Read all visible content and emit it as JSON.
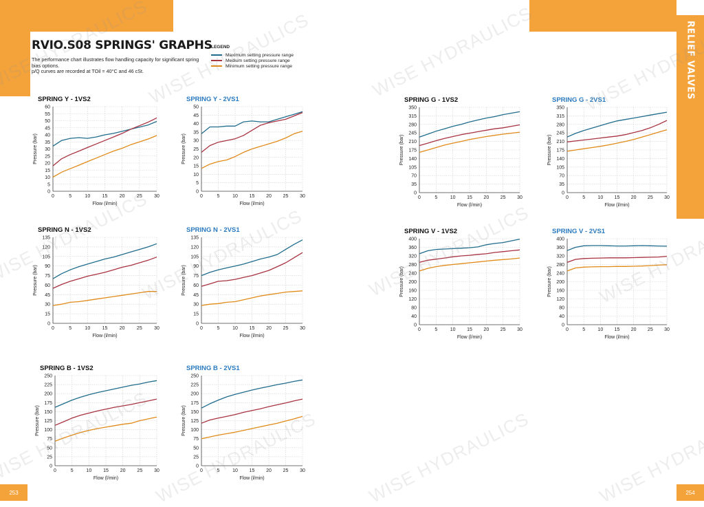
{
  "page": {
    "title": "RVIO.S08 SPRINGS' GRAPHS",
    "description": "The performance chart illustrates flow handling capacity for significant spring bias options.\np/Q curves are recorded at TOil = 40°C and 46 cSt.",
    "section_title": "RELIEF VALVES",
    "page_left": "253",
    "page_right": "254",
    "watermark": "WISE HYDRAULICS"
  },
  "legend": {
    "title": "LEGEND",
    "items": [
      {
        "label": "Maximum setting pressure range",
        "color": "#1f6c8c"
      },
      {
        "label": "Medium setting pressure range",
        "color": "#a83240"
      },
      {
        "label": "Minimum setting pressure range",
        "color": "#e08a18"
      }
    ]
  },
  "colors": {
    "accent": "#f4a23a",
    "blue_title": "#2a7abf",
    "max": "#1f6c8c",
    "med": "#a83240",
    "min": "#e08a18"
  },
  "chart_data": [
    {
      "type": "line",
      "title": "SPRING Y - 1VS2",
      "xlabel": "Flow (l/min)",
      "ylabel": "Pressure (bar)",
      "xlim": [
        0,
        30
      ],
      "ylim": [
        0,
        60
      ],
      "yticks": [
        0,
        5,
        10,
        15,
        20,
        25,
        30,
        35,
        40,
        45,
        50,
        55,
        60
      ],
      "xticks": [
        0,
        5,
        10,
        15,
        20,
        25,
        30
      ],
      "grid": true,
      "x": [
        0,
        2.5,
        5,
        7.5,
        10,
        12.5,
        15,
        17.5,
        20,
        22.5,
        25,
        27.5,
        30
      ],
      "series": [
        {
          "values": [
            32,
            36,
            37.5,
            38,
            37.5,
            38.5,
            40,
            41,
            42.5,
            44,
            45.5,
            47,
            49.5
          ]
        },
        {
          "values": [
            18,
            23,
            26,
            28.5,
            31,
            33.5,
            36,
            38.5,
            41,
            44,
            46.5,
            49,
            52
          ]
        },
        {
          "values": [
            10,
            13.5,
            16,
            18.5,
            21,
            23.5,
            26,
            28.5,
            30.5,
            33,
            35,
            37,
            39.5
          ]
        }
      ]
    },
    {
      "type": "line",
      "title": "SPRING Y - 2VS1",
      "xlabel": "Flow (l/min)",
      "ylabel": "Pressure (bar)",
      "xlim": [
        0,
        30
      ],
      "ylim": [
        0,
        50
      ],
      "yticks": [
        0,
        5,
        10,
        15,
        20,
        25,
        30,
        35,
        40,
        45,
        50
      ],
      "xticks": [
        0,
        5,
        10,
        15,
        20,
        25,
        30
      ],
      "grid": true,
      "x": [
        0,
        2.5,
        5,
        7.5,
        10,
        12.5,
        15,
        17.5,
        20,
        22.5,
        25,
        27.5,
        30
      ],
      "series": [
        {
          "values": [
            34,
            38,
            38,
            38.5,
            38.5,
            41,
            41.5,
            41,
            41,
            42.5,
            44,
            45.5,
            47
          ]
        },
        {
          "values": [
            23,
            27,
            29,
            30,
            31,
            33,
            36,
            39,
            40.5,
            41.5,
            42.5,
            44.5,
            46.5
          ]
        },
        {
          "values": [
            13.5,
            16,
            17.5,
            18.5,
            20.5,
            23,
            25,
            26.5,
            28,
            29.5,
            31.5,
            34,
            35.5
          ]
        }
      ]
    },
    {
      "type": "line",
      "title": "SPRING G - 1VS2",
      "xlabel": "Flow (l/min)",
      "ylabel": "Pressure (bar)",
      "xlim": [
        0,
        30
      ],
      "ylim": [
        0,
        350
      ],
      "yticks": [
        0,
        35,
        70,
        105,
        140,
        175,
        210,
        245,
        280,
        315,
        350
      ],
      "xticks": [
        0,
        5,
        10,
        15,
        20,
        25,
        30
      ],
      "grid": true,
      "x": [
        0,
        2.5,
        5,
        7.5,
        10,
        12.5,
        15,
        17.5,
        20,
        22.5,
        25,
        27.5,
        30
      ],
      "series": [
        {
          "values": [
            228,
            240,
            252,
            262,
            272,
            280,
            290,
            298,
            306,
            312,
            320,
            326,
            332
          ]
        },
        {
          "values": [
            193,
            203,
            213,
            222,
            230,
            238,
            244,
            250,
            256,
            262,
            266,
            272,
            278
          ]
        },
        {
          "values": [
            165,
            175,
            185,
            195,
            203,
            210,
            218,
            224,
            230,
            235,
            240,
            244,
            248
          ]
        }
      ]
    },
    {
      "type": "line",
      "title": "SPRING G - 2VS1",
      "xlabel": "Flow (l/min)",
      "ylabel": "Pressure (bar)",
      "xlim": [
        0,
        30
      ],
      "ylim": [
        0,
        350
      ],
      "yticks": [
        0,
        35,
        70,
        105,
        140,
        175,
        210,
        245,
        280,
        315,
        350
      ],
      "xticks": [
        0,
        5,
        10,
        15,
        20,
        25,
        30
      ],
      "grid": true,
      "x": [
        0,
        2.5,
        5,
        7.5,
        10,
        12.5,
        15,
        17.5,
        20,
        22.5,
        25,
        27.5,
        30
      ],
      "series": [
        {
          "values": [
            228,
            243,
            255,
            265,
            275,
            285,
            294,
            300,
            306,
            312,
            318,
            324,
            330
          ]
        },
        {
          "values": [
            208,
            212,
            216,
            220,
            224,
            228,
            232,
            238,
            246,
            255,
            266,
            280,
            296
          ]
        },
        {
          "values": [
            170,
            175,
            180,
            185,
            190,
            196,
            203,
            210,
            218,
            228,
            238,
            248,
            258
          ]
        }
      ]
    },
    {
      "type": "line",
      "title": "SPRING N - 1VS2",
      "xlabel": "Flow (l/min)",
      "ylabel": "Pressure (bar)",
      "xlim": [
        0,
        30
      ],
      "ylim": [
        0,
        135
      ],
      "yticks": [
        0,
        15,
        30,
        45,
        60,
        75,
        90,
        105,
        120,
        135
      ],
      "xticks": [
        0,
        5,
        10,
        15,
        20,
        25,
        30
      ],
      "grid": true,
      "x": [
        0,
        2.5,
        5,
        7.5,
        10,
        12.5,
        15,
        17.5,
        20,
        22.5,
        25,
        27.5,
        30
      ],
      "series": [
        {
          "values": [
            70,
            78,
            84,
            89,
            93,
            97,
            101,
            104,
            108,
            112,
            116,
            120,
            125
          ]
        },
        {
          "values": [
            55,
            61,
            66,
            70,
            74,
            77,
            80,
            84,
            88,
            91,
            95,
            99,
            104
          ]
        },
        {
          "values": [
            28,
            30,
            33,
            34,
            36,
            38,
            40,
            42,
            44,
            46,
            48,
            50,
            50
          ]
        }
      ]
    },
    {
      "type": "line",
      "title": "SPRING N - 2VS1",
      "xlabel": "Flow (l/min)",
      "ylabel": "Pressure (bar)",
      "xlim": [
        0,
        30
      ],
      "ylim": [
        0,
        135
      ],
      "yticks": [
        0,
        15,
        30,
        45,
        60,
        75,
        90,
        105,
        120,
        135
      ],
      "xticks": [
        0,
        5,
        10,
        15,
        20,
        25,
        30
      ],
      "grid": true,
      "x": [
        0,
        2.5,
        5,
        7.5,
        10,
        12.5,
        15,
        17.5,
        20,
        22.5,
        25,
        27.5,
        30
      ],
      "series": [
        {
          "values": [
            75,
            80,
            84,
            87,
            90,
            93,
            97,
            101,
            104,
            108,
            116,
            124,
            131
          ]
        },
        {
          "values": [
            58,
            62,
            66,
            67,
            69,
            72,
            75,
            79,
            83,
            89,
            95,
            103,
            111
          ]
        },
        {
          "values": [
            28,
            30,
            31,
            33,
            34,
            37,
            40,
            43,
            45,
            47,
            49,
            50,
            51
          ]
        }
      ]
    },
    {
      "type": "line",
      "title": "SPRING V - 1VS2",
      "xlabel": "Flow (l/min)",
      "ylabel": "Pressure (bar)",
      "xlim": [
        0,
        30
      ],
      "ylim": [
        0,
        400
      ],
      "yticks": [
        0,
        40,
        80,
        120,
        160,
        200,
        240,
        280,
        320,
        360,
        400
      ],
      "xticks": [
        0,
        5,
        10,
        15,
        20,
        25,
        30
      ],
      "grid": true,
      "x": [
        0,
        2.5,
        5,
        7.5,
        10,
        12.5,
        15,
        17.5,
        20,
        22.5,
        25,
        27.5,
        30
      ],
      "series": [
        {
          "values": [
            330,
            344,
            350,
            352,
            354,
            356,
            358,
            362,
            372,
            378,
            382,
            390,
            398
          ]
        },
        {
          "values": [
            290,
            300,
            305,
            310,
            316,
            320,
            323,
            327,
            330,
            336,
            340,
            344,
            348
          ]
        },
        {
          "values": [
            250,
            262,
            270,
            276,
            280,
            284,
            288,
            292,
            296,
            300,
            303,
            306,
            310
          ]
        }
      ]
    },
    {
      "type": "line",
      "title": "SPRING V - 2VS1",
      "xlabel": "Flow (l/min)",
      "ylabel": "Pressure (bar)",
      "xlim": [
        0,
        30
      ],
      "ylim": [
        0,
        400
      ],
      "yticks": [
        0,
        40,
        80,
        120,
        160,
        200,
        240,
        280,
        320,
        360,
        400
      ],
      "xticks": [
        0,
        5,
        10,
        15,
        20,
        25,
        30
      ],
      "grid": true,
      "x": [
        0,
        2.5,
        5,
        7.5,
        10,
        12.5,
        15,
        17.5,
        20,
        22.5,
        25,
        27.5,
        30
      ],
      "series": [
        {
          "values": [
            345,
            360,
            367,
            368,
            368,
            367,
            366,
            366,
            367,
            368,
            367,
            366,
            365
          ]
        },
        {
          "values": [
            290,
            304,
            308,
            309,
            310,
            311,
            311,
            311,
            312,
            313,
            314,
            315,
            318
          ]
        },
        {
          "values": [
            250,
            264,
            268,
            269,
            270,
            270,
            271,
            271,
            272,
            273,
            275,
            277,
            279
          ]
        }
      ]
    },
    {
      "type": "line",
      "title": "SPRING B - 1VS2",
      "xlabel": "Flow (l/min)",
      "ylabel": "Pressure (bar)",
      "xlim": [
        0,
        30
      ],
      "ylim": [
        0,
        250
      ],
      "yticks": [
        0,
        25,
        50,
        75,
        100,
        125,
        150,
        175,
        200,
        225,
        250
      ],
      "xticks": [
        0,
        5,
        10,
        15,
        20,
        25,
        30
      ],
      "grid": true,
      "x": [
        0,
        2.5,
        5,
        7.5,
        10,
        12.5,
        15,
        17.5,
        20,
        22.5,
        25,
        27.5,
        30
      ],
      "series": [
        {
          "values": [
            162,
            172,
            182,
            190,
            197,
            203,
            208,
            213,
            218,
            223,
            227,
            232,
            236
          ]
        },
        {
          "values": [
            112,
            122,
            132,
            140,
            146,
            152,
            157,
            162,
            166,
            170,
            175,
            180,
            185
          ]
        },
        {
          "values": [
            68,
            77,
            85,
            92,
            98,
            103,
            107,
            111,
            115,
            118,
            125,
            130,
            135
          ]
        }
      ]
    },
    {
      "type": "line",
      "title": "SPRING B - 2VS1",
      "xlabel": "Flow (l/min)",
      "ylabel": "Pressure (bar)",
      "xlim": [
        0,
        30
      ],
      "ylim": [
        0,
        250
      ],
      "yticks": [
        0,
        25,
        50,
        75,
        100,
        125,
        150,
        175,
        200,
        225,
        250
      ],
      "xticks": [
        0,
        5,
        10,
        15,
        20,
        25,
        30
      ],
      "grid": true,
      "x": [
        0,
        2.5,
        5,
        7.5,
        10,
        12.5,
        15,
        17.5,
        20,
        22.5,
        25,
        27.5,
        30
      ],
      "series": [
        {
          "values": [
            160,
            172,
            182,
            191,
            198,
            204,
            210,
            215,
            220,
            225,
            229,
            234,
            238
          ]
        },
        {
          "values": [
            118,
            127,
            132,
            137,
            142,
            148,
            153,
            158,
            164,
            169,
            174,
            180,
            185
          ]
        },
        {
          "values": [
            75,
            80,
            85,
            89,
            93,
            98,
            103,
            108,
            113,
            118,
            124,
            130,
            137
          ]
        }
      ]
    }
  ]
}
